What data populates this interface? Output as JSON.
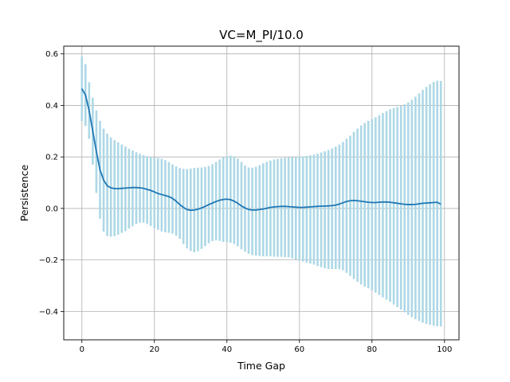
{
  "chart_data": {
    "type": "line",
    "title": "VC=M_PI/10.0",
    "xlabel": "Time Gap",
    "ylabel": "Persistence",
    "xlim": [
      -5,
      104
    ],
    "ylim": [
      -0.51,
      0.63
    ],
    "xticks": [
      0,
      20,
      40,
      60,
      80,
      100
    ],
    "xtick_labels": [
      "0",
      "20",
      "40",
      "60",
      "80",
      "100"
    ],
    "yticks": [
      -0.4,
      -0.2,
      0.0,
      0.2,
      0.4,
      0.6
    ],
    "ytick_labels": [
      "−0.4",
      "−0.2",
      "0.0",
      "0.2",
      "0.4",
      "0.6"
    ],
    "grid": true,
    "legend": "none",
    "colors": {
      "line": "#1f77b4",
      "errorbar": "#add8e6",
      "grid": "#b0b0b0"
    },
    "series": [
      {
        "x": [
          0,
          1,
          2,
          3,
          4,
          5,
          6,
          7,
          8,
          9,
          10,
          11,
          12,
          13,
          14,
          15,
          16,
          17,
          18,
          19,
          20,
          21,
          22,
          23,
          24,
          25,
          26,
          27,
          28,
          29,
          30,
          31,
          32,
          33,
          34,
          35,
          36,
          37,
          38,
          39,
          40,
          41,
          42,
          43,
          44,
          45,
          46,
          47,
          48,
          49,
          50,
          51,
          52,
          53,
          54,
          55,
          56,
          57,
          58,
          59,
          60,
          61,
          62,
          63,
          64,
          65,
          66,
          67,
          68,
          69,
          70,
          71,
          72,
          73,
          74,
          75,
          76,
          77,
          78,
          79,
          80,
          81,
          82,
          83,
          84,
          85,
          86,
          87,
          88,
          89,
          90,
          91,
          92,
          93,
          94,
          95,
          96,
          97,
          98,
          99
        ],
        "y": [
          0.465,
          0.44,
          0.38,
          0.3,
          0.22,
          0.15,
          0.11,
          0.088,
          0.08,
          0.077,
          0.077,
          0.078,
          0.079,
          0.08,
          0.081,
          0.081,
          0.08,
          0.078,
          0.074,
          0.07,
          0.064,
          0.058,
          0.054,
          0.05,
          0.046,
          0.039,
          0.028,
          0.015,
          0.004,
          -0.004,
          -0.007,
          -0.006,
          -0.003,
          0.002,
          0.008,
          0.015,
          0.021,
          0.027,
          0.032,
          0.035,
          0.036,
          0.034,
          0.028,
          0.02,
          0.01,
          0.002,
          -0.004,
          -0.006,
          -0.006,
          -0.004,
          -0.002,
          0.001,
          0.004,
          0.006,
          0.007,
          0.008,
          0.008,
          0.007,
          0.006,
          0.005,
          0.004,
          0.004,
          0.005,
          0.006,
          0.007,
          0.008,
          0.009,
          0.009,
          0.01,
          0.011,
          0.013,
          0.017,
          0.022,
          0.027,
          0.03,
          0.031,
          0.03,
          0.028,
          0.026,
          0.024,
          0.023,
          0.023,
          0.024,
          0.025,
          0.025,
          0.024,
          0.022,
          0.02,
          0.018,
          0.016,
          0.015,
          0.015,
          0.016,
          0.018,
          0.02,
          0.021,
          0.022,
          0.023,
          0.024,
          0.016
        ],
        "upper": [
          0.59,
          0.56,
          0.49,
          0.43,
          0.38,
          0.34,
          0.31,
          0.29,
          0.275,
          0.265,
          0.256,
          0.248,
          0.24,
          0.232,
          0.225,
          0.218,
          0.212,
          0.207,
          0.203,
          0.2,
          0.198,
          0.196,
          0.193,
          0.188,
          0.18,
          0.171,
          0.163,
          0.157,
          0.154,
          0.153,
          0.155,
          0.157,
          0.158,
          0.159,
          0.161,
          0.165,
          0.172,
          0.181,
          0.19,
          0.198,
          0.203,
          0.205,
          0.202,
          0.193,
          0.18,
          0.167,
          0.159,
          0.158,
          0.162,
          0.168,
          0.175,
          0.181,
          0.186,
          0.19,
          0.193,
          0.195,
          0.197,
          0.198,
          0.199,
          0.2,
          0.201,
          0.202,
          0.204,
          0.206,
          0.209,
          0.213,
          0.217,
          0.222,
          0.227,
          0.233,
          0.24,
          0.248,
          0.258,
          0.27,
          0.283,
          0.297,
          0.31,
          0.322,
          0.332,
          0.34,
          0.347,
          0.354,
          0.362,
          0.37,
          0.378,
          0.385,
          0.39,
          0.394,
          0.398,
          0.404,
          0.412,
          0.422,
          0.434,
          0.447,
          0.46,
          0.472,
          0.483,
          0.491,
          0.496,
          0.495
        ],
        "lower": [
          0.34,
          0.32,
          0.27,
          0.17,
          0.06,
          -0.04,
          -0.09,
          -0.107,
          -0.11,
          -0.108,
          -0.102,
          -0.095,
          -0.088,
          -0.078,
          -0.069,
          -0.06,
          -0.055,
          -0.055,
          -0.06,
          -0.068,
          -0.076,
          -0.083,
          -0.089,
          -0.093,
          -0.095,
          -0.098,
          -0.106,
          -0.118,
          -0.138,
          -0.155,
          -0.165,
          -0.17,
          -0.166,
          -0.157,
          -0.146,
          -0.135,
          -0.127,
          -0.124,
          -0.126,
          -0.13,
          -0.13,
          -0.133,
          -0.138,
          -0.147,
          -0.158,
          -0.168,
          -0.176,
          -0.181,
          -0.183,
          -0.185,
          -0.186,
          -0.186,
          -0.186,
          -0.187,
          -0.188,
          -0.188,
          -0.189,
          -0.19,
          -0.194,
          -0.198,
          -0.202,
          -0.206,
          -0.21,
          -0.214,
          -0.218,
          -0.223,
          -0.228,
          -0.232,
          -0.235,
          -0.235,
          -0.235,
          -0.236,
          -0.24,
          -0.25,
          -0.262,
          -0.274,
          -0.285,
          -0.295,
          -0.303,
          -0.31,
          -0.318,
          -0.327,
          -0.336,
          -0.345,
          -0.354,
          -0.363,
          -0.373,
          -0.383,
          -0.393,
          -0.403,
          -0.413,
          -0.422,
          -0.43,
          -0.437,
          -0.443,
          -0.448,
          -0.452,
          -0.455,
          -0.457,
          -0.458
        ]
      }
    ]
  }
}
